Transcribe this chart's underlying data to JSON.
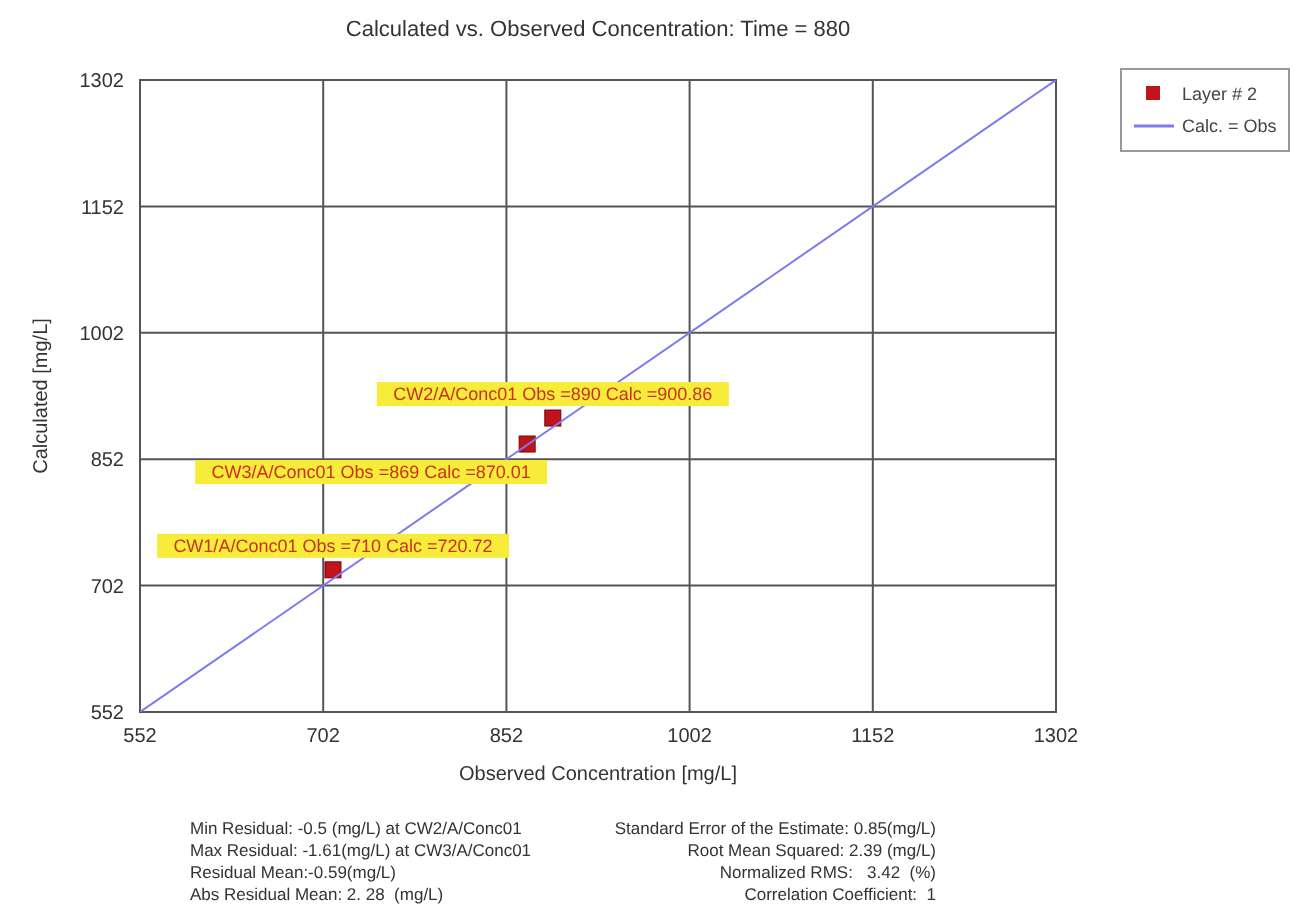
{
  "chart_data": {
    "type": "scatter",
    "title": "Calculated vs. Observed Concentration: Time = 880",
    "xlabel": "Observed Concentration [mg/L]",
    "ylabel": "Calculated [mg/L]",
    "xlim": [
      552,
      1302
    ],
    "ylim": [
      552,
      1302
    ],
    "xticks": [
      552,
      702,
      852,
      1002,
      1152,
      1302
    ],
    "yticks": [
      552,
      702,
      852,
      1002,
      1152,
      1302
    ],
    "grid": true,
    "legend": "top right",
    "series": [
      {
        "name": "Layer # 2",
        "marker": "square",
        "color": "#c0141c",
        "x": [
          710,
          890,
          869
        ],
        "values": [
          720.72,
          900.86,
          870.01
        ],
        "value_labels": [
          "CW1/A/Conc01 Obs =710 Calc =720.72",
          "CW2/A/Conc01 Obs =890 Calc =900.86",
          "CW3/A/Conc01 Obs =869 Calc =870.01"
        ]
      },
      {
        "name": "Calc. = Obs",
        "type": "line",
        "color": "#7b7bef",
        "x": [
          552,
          1302
        ],
        "values": [
          552,
          1302
        ],
        "marker": "none",
        "line_style": "solid"
      }
    ],
    "annotations": [
      "Min Residual: -0.5 (mg/L) at CW2/A/Conc01",
      "Max Residual: -1.61(mg/L) at CW3/A/Conc01",
      "Residual Mean:-0.59(mg/L)",
      "Abs Residual Mean: 2. 28  (mg/L)",
      "Standard Error of the Estimate: 0.85(mg/L)",
      "Root Mean Squared: 2.39 (mg/L)",
      "Normalized RMS:   3.42  (%)",
      "Correlation Coefficient:  1"
    ]
  }
}
